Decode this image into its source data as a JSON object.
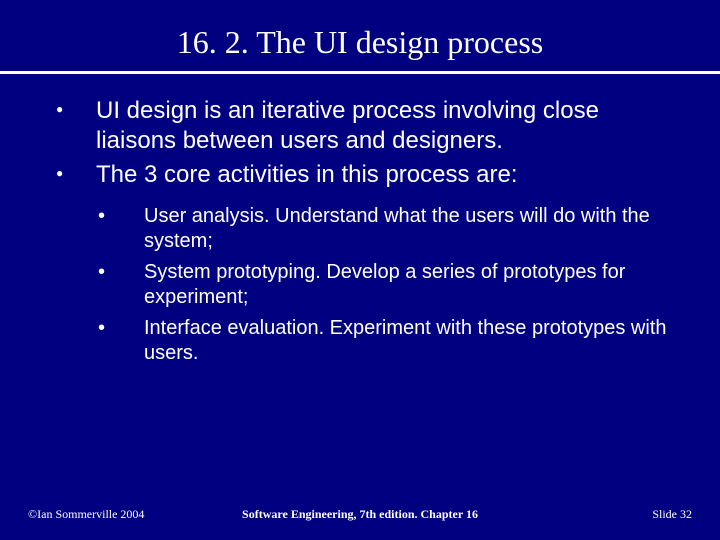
{
  "slide": {
    "background_color": "#000080",
    "text_color": "#ffffff",
    "title": "16. 2. The UI design process",
    "title_fontsize": 32,
    "body_fontsize": 24,
    "sub_fontsize": 20,
    "bullets": [
      "UI design is an iterative process involving close liaisons between users and designers.",
      "The 3 core activities in this process are:"
    ],
    "sub_bullets": [
      {
        "term": "User analysis",
        "rest": ". Understand what the users will do with the system;"
      },
      {
        "term": "System prototyping",
        "rest": ". Develop a series of prototypes for experiment;"
      },
      {
        "term": "Interface evaluation",
        "rest": ". Experiment with these prototypes with users."
      }
    ],
    "footer": {
      "left": "©Ian Sommerville 2004",
      "center": "Software Engineering, 7th edition. Chapter 16",
      "right_prefix": "Slide ",
      "slide_number": "32"
    }
  }
}
